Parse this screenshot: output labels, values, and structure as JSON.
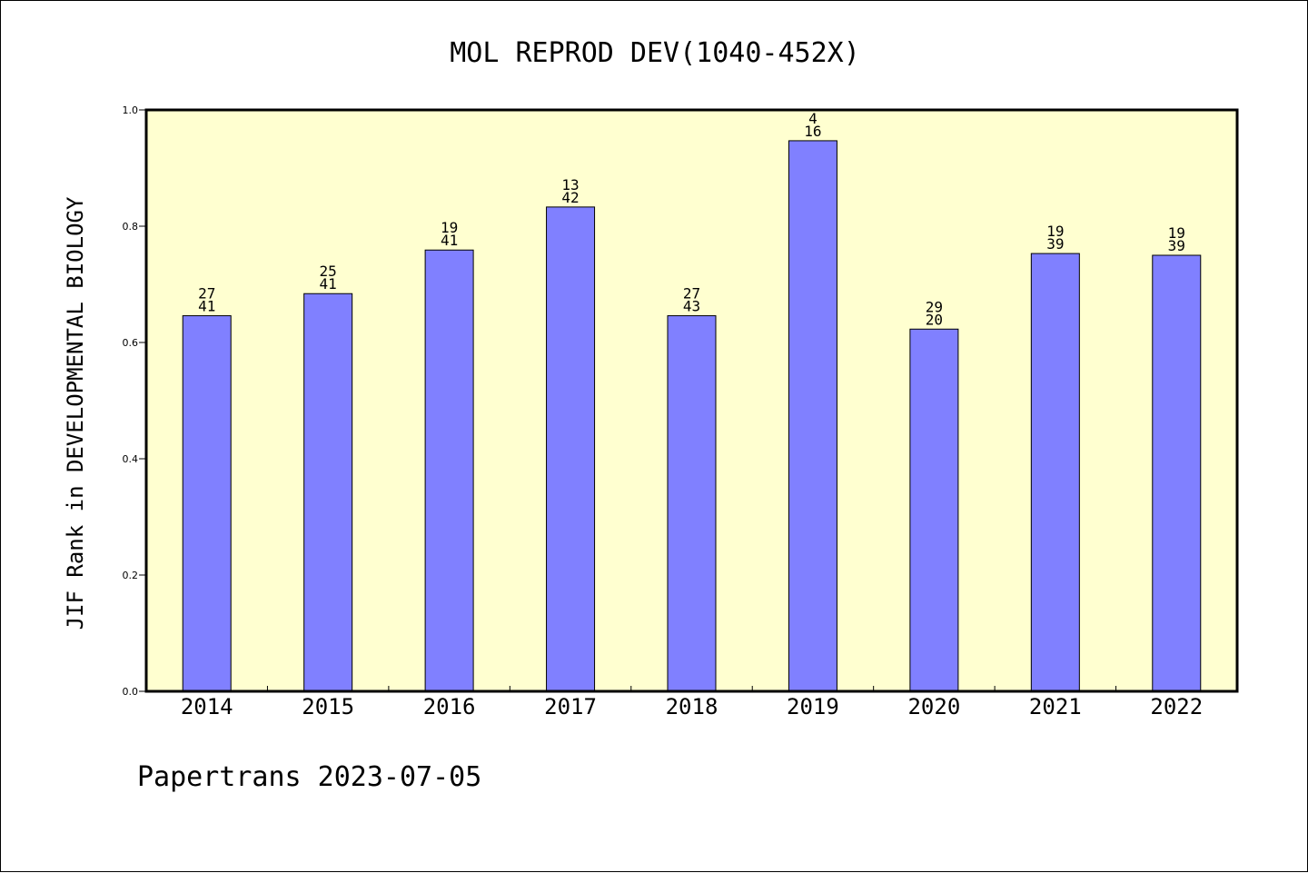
{
  "chart_data": {
    "type": "bar",
    "title": "MOL REPROD DEV(1040-452X)",
    "ylabel": "JIF Rank in DEVELOPMENTAL BIOLOGY",
    "xlabel": "",
    "ylim": [
      0,
      1.0
    ],
    "yticks": [
      0.0,
      0.2,
      0.4,
      0.6,
      0.8,
      1.0
    ],
    "ytick_labels": [
      "0.0",
      "0.2",
      "0.4",
      "0.6",
      "0.8",
      "1.0"
    ],
    "categories": [
      "2014",
      "2015",
      "2016",
      "2017",
      "2018",
      "2019",
      "2020",
      "2021",
      "2022"
    ],
    "values": [
      0.646,
      0.684,
      0.759,
      0.833,
      0.646,
      0.947,
      0.623,
      0.753,
      0.75
    ],
    "label_top": [
      "27",
      "25",
      "19",
      "13",
      "27",
      "4",
      "29",
      "19",
      "19"
    ],
    "label_bottom": [
      "41",
      "41",
      "41",
      "42",
      "43",
      "16",
      "20",
      "39",
      "39"
    ],
    "colors": {
      "bar_fill": "#8080ff",
      "plot_background": "#ffffd0",
      "axis": "#000000"
    },
    "grid": false
  },
  "footer": {
    "text": "Papertrans 2023-07-05"
  }
}
